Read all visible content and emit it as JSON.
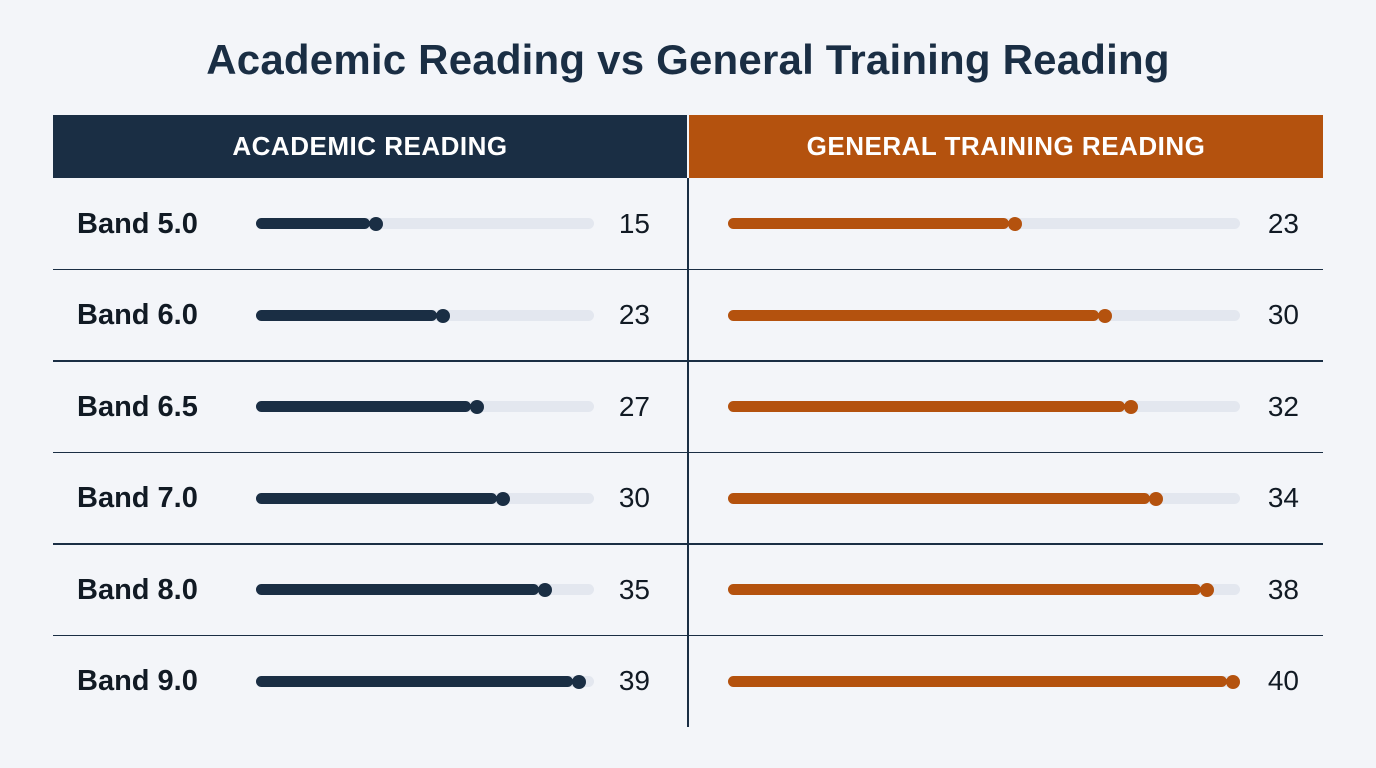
{
  "title": "Academic Reading vs General Training Reading",
  "colors": {
    "academic": "#1a2e44",
    "general": "#b4520e",
    "track": "#e3e7ef",
    "background": "#f3f5f9"
  },
  "chart_data": {
    "type": "bar",
    "title": "Academic Reading vs General Training Reading",
    "categories": [
      "Band 5.0",
      "Band 6.0",
      "Band 6.5",
      "Band 7.0",
      "Band 8.0",
      "Band 9.0"
    ],
    "series": [
      {
        "name": "ACADEMIC READING",
        "values": [
          15,
          23,
          27,
          30,
          35,
          39
        ]
      },
      {
        "name": "GENERAL TRAINING READING",
        "values": [
          23,
          30,
          32,
          34,
          38,
          40
        ]
      }
    ],
    "xlim": [
      0,
      40
    ],
    "grid": false
  }
}
